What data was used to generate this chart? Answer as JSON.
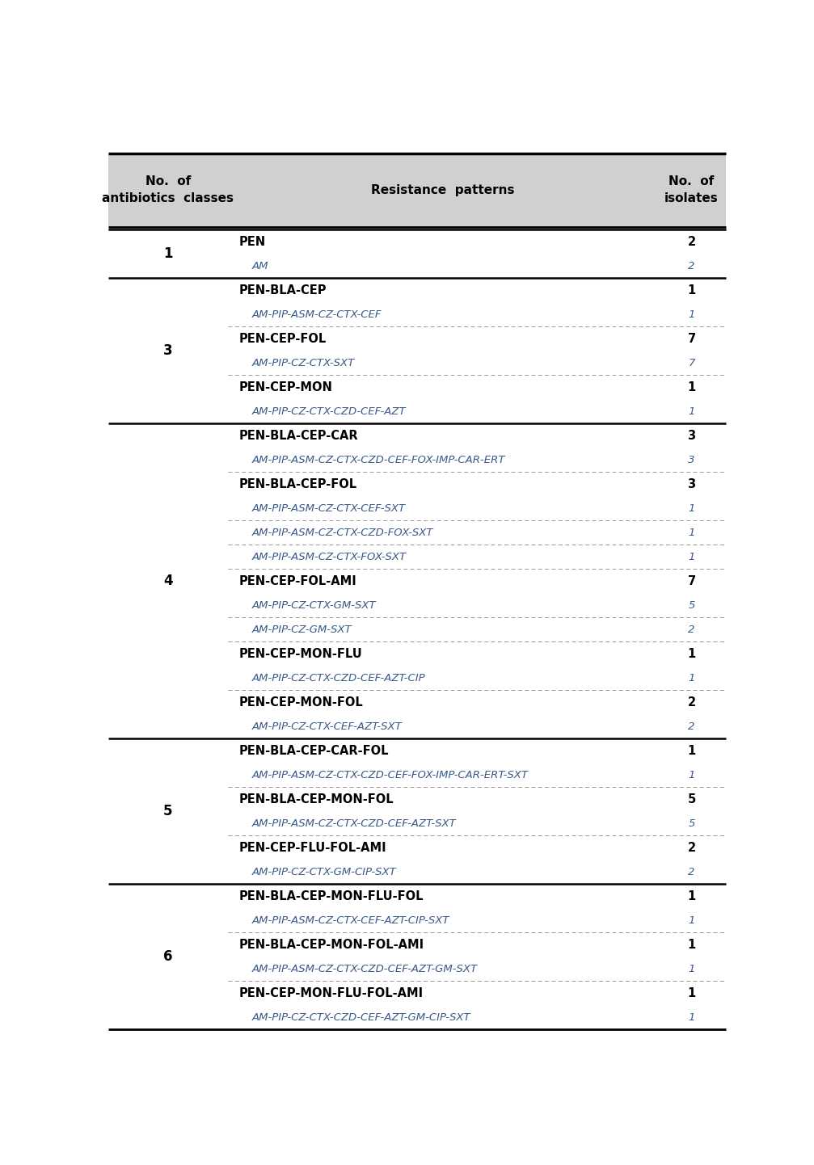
{
  "header_bg": "#d0d0d0",
  "header_text_color": "#000000",
  "body_bg": "#ffffff",
  "bold_color": "#000000",
  "italic_color": "#3a5a8a",
  "col1_header": "No.  of\nantibiotics  classes",
  "col2_header": "Resistance  patterns",
  "col3_header": "No.  of\nisolates",
  "groups": [
    {
      "class": "1",
      "thick_above": true,
      "items": [
        {
          "bold": "PEN",
          "subs": [],
          "count_bold": "2"
        },
        {
          "bold": null,
          "subs": [
            [
              "AM",
              "2"
            ]
          ],
          "count_bold": null
        }
      ]
    },
    {
      "class": "3",
      "thick_above": true,
      "items": [
        {
          "bold": "PEN-BLA-CEP",
          "subs": [],
          "count_bold": "1"
        },
        {
          "bold": null,
          "subs": [
            [
              "AM-PIP-ASM-CZ-CTX-CEF",
              "1"
            ]
          ],
          "count_bold": null
        }
      ]
    },
    {
      "class": "",
      "thick_above": false,
      "items": [
        {
          "bold": "PEN-CEP-FOL",
          "subs": [],
          "count_bold": "7"
        },
        {
          "bold": null,
          "subs": [
            [
              "AM-PIP-CZ-CTX-SXT",
              "7"
            ]
          ],
          "count_bold": null
        }
      ]
    },
    {
      "class": "",
      "thick_above": false,
      "items": [
        {
          "bold": "PEN-CEP-MON",
          "subs": [],
          "count_bold": "1"
        },
        {
          "bold": null,
          "subs": [
            [
              "AM-PIP-CZ-CTX-CZD-CEF-AZT",
              "1"
            ]
          ],
          "count_bold": null
        }
      ]
    },
    {
      "class": "4",
      "thick_above": true,
      "items": [
        {
          "bold": "PEN-BLA-CEP-CAR",
          "subs": [],
          "count_bold": "3"
        },
        {
          "bold": null,
          "subs": [
            [
              "AM-PIP-ASM-CZ-CTX-CZD-CEF-FOX-IMP-CAR-ERT",
              "3"
            ]
          ],
          "count_bold": null
        }
      ]
    },
    {
      "class": "",
      "thick_above": false,
      "items": [
        {
          "bold": "PEN-BLA-CEP-FOL",
          "subs": [],
          "count_bold": "3"
        },
        {
          "bold": null,
          "subs": [
            [
              "AM-PIP-ASM-CZ-CTX-CEF-SXT",
              "1"
            ],
            [
              "AM-PIP-ASM-CZ-CTX-CZD-FOX-SXT",
              "1"
            ],
            [
              "AM-PIP-ASM-CZ-CTX-FOX-SXT",
              "1"
            ]
          ],
          "count_bold": null
        }
      ]
    },
    {
      "class": "",
      "thick_above": false,
      "items": [
        {
          "bold": "PEN-CEP-FOL-AMI",
          "subs": [],
          "count_bold": "7"
        },
        {
          "bold": null,
          "subs": [
            [
              "AM-PIP-CZ-CTX-GM-SXT",
              "5"
            ],
            [
              "AM-PIP-CZ-GM-SXT",
              "2"
            ]
          ],
          "count_bold": null
        }
      ]
    },
    {
      "class": "",
      "thick_above": false,
      "items": [
        {
          "bold": "PEN-CEP-MON-FLU",
          "subs": [],
          "count_bold": "1"
        },
        {
          "bold": null,
          "subs": [
            [
              "AM-PIP-CZ-CTX-CZD-CEF-AZT-CIP",
              "1"
            ]
          ],
          "count_bold": null
        }
      ]
    },
    {
      "class": "",
      "thick_above": false,
      "items": [
        {
          "bold": "PEN-CEP-MON-FOL",
          "subs": [],
          "count_bold": "2"
        },
        {
          "bold": null,
          "subs": [
            [
              "AM-PIP-CZ-CTX-CEF-AZT-SXT",
              "2"
            ]
          ],
          "count_bold": null
        }
      ]
    },
    {
      "class": "5",
      "thick_above": true,
      "items": [
        {
          "bold": "PEN-BLA-CEP-CAR-FOL",
          "subs": [],
          "count_bold": "1"
        },
        {
          "bold": null,
          "subs": [
            [
              "AM-PIP-ASM-CZ-CTX-CZD-CEF-FOX-IMP-CAR-ERT-SXT",
              "1"
            ]
          ],
          "count_bold": null
        }
      ]
    },
    {
      "class": "",
      "thick_above": false,
      "items": [
        {
          "bold": "PEN-BLA-CEP-MON-FOL",
          "subs": [],
          "count_bold": "5"
        },
        {
          "bold": null,
          "subs": [
            [
              "AM-PIP-ASM-CZ-CTX-CZD-CEF-AZT-SXT",
              "5"
            ]
          ],
          "count_bold": null
        }
      ]
    },
    {
      "class": "",
      "thick_above": false,
      "items": [
        {
          "bold": "PEN-CEP-FLU-FOL-AMI",
          "subs": [],
          "count_bold": "2"
        },
        {
          "bold": null,
          "subs": [
            [
              "AM-PIP-CZ-CTX-GM-CIP-SXT",
              "2"
            ]
          ],
          "count_bold": null
        }
      ]
    },
    {
      "class": "6",
      "thick_above": true,
      "items": [
        {
          "bold": "PEN-BLA-CEP-MON-FLU-FOL",
          "subs": [],
          "count_bold": "1"
        },
        {
          "bold": null,
          "subs": [
            [
              "AM-PIP-ASM-CZ-CTX-CEF-AZT-CIP-SXT",
              "1"
            ]
          ],
          "count_bold": null
        }
      ]
    },
    {
      "class": "",
      "thick_above": false,
      "items": [
        {
          "bold": "PEN-BLA-CEP-MON-FOL-AMI",
          "subs": [],
          "count_bold": "1"
        },
        {
          "bold": null,
          "subs": [
            [
              "AM-PIP-ASM-CZ-CTX-CZD-CEF-AZT-GM-SXT",
              "1"
            ]
          ],
          "count_bold": null
        }
      ]
    },
    {
      "class": "",
      "thick_above": false,
      "items": [
        {
          "bold": "PEN-CEP-MON-FLU-FOL-AMI",
          "subs": [],
          "count_bold": "1"
        },
        {
          "bold": null,
          "subs": [
            [
              "AM-PIP-CZ-CTX-CZD-CEF-AZT-GM-CIP-SXT",
              "1"
            ]
          ],
          "count_bold": null
        }
      ]
    }
  ]
}
